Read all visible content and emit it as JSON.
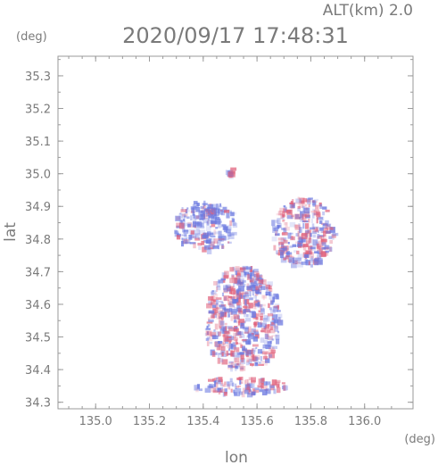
{
  "header": {
    "altitude_label": "ALT(km) 2.0",
    "timestamp": "2020/09/17 17:48:31"
  },
  "chart_data": {
    "type": "heatmap",
    "title": "2020/09/17 17:48:31",
    "subtitle": "ALT(km) 2.0",
    "xlabel": "lon",
    "ylabel": "lat",
    "x_unit": "(deg)",
    "y_unit": "(deg)",
    "xlim": [
      134.86,
      136.18
    ],
    "ylim": [
      34.28,
      35.36
    ],
    "x_ticks": [
      "135.0",
      "135.2",
      "135.4",
      "135.6",
      "135.8",
      "136.0"
    ],
    "y_ticks": [
      "34.3",
      "34.4",
      "34.5",
      "34.6",
      "34.7",
      "34.8",
      "34.9",
      "35.0",
      "35.1",
      "35.2",
      "35.3"
    ],
    "grid": false,
    "colors": {
      "positive": "#e0607a",
      "negative": "#6a78e0",
      "frame": "#9a9a9a"
    },
    "regions": [
      {
        "name": "north-west band",
        "lon_range": [
          135.29,
          135.52
        ],
        "lat_range": [
          34.77,
          34.92
        ],
        "polarity": "mostly-negative"
      },
      {
        "name": "north spot",
        "lon_range": [
          135.48,
          135.52
        ],
        "lat_range": [
          35.0,
          35.02
        ],
        "polarity": "mixed"
      },
      {
        "name": "north-east cluster",
        "lon_range": [
          135.65,
          135.88
        ],
        "lat_range": [
          34.72,
          34.93
        ],
        "polarity": "mixed"
      },
      {
        "name": "central cluster",
        "lon_range": [
          135.4,
          135.68
        ],
        "lat_range": [
          34.4,
          34.72
        ],
        "polarity": "mixed"
      },
      {
        "name": "southern strip",
        "lon_range": [
          135.36,
          135.7
        ],
        "lat_range": [
          34.33,
          34.38
        ],
        "polarity": "mixed"
      }
    ]
  }
}
